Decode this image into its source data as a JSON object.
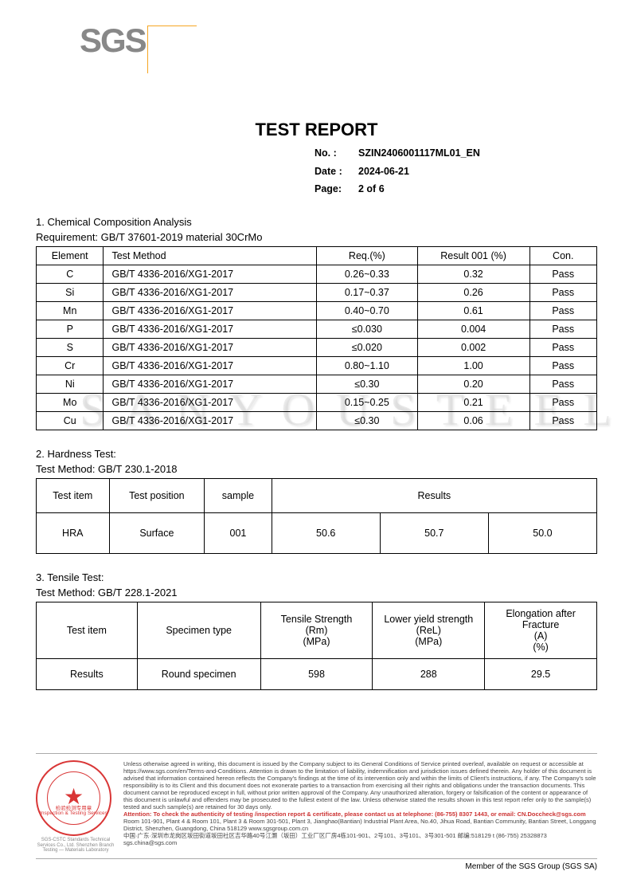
{
  "logo": {
    "text": "SGS"
  },
  "title": "TEST REPORT",
  "meta": {
    "no_label": "No.   :",
    "no": "SZIN2406001117ML01_EN",
    "date_label": "Date :",
    "date": "2024-06-21",
    "page_label": "Page:",
    "page": "2 of 6"
  },
  "watermark": "S A N Y O U  S T E E L",
  "section1": {
    "heading": "1. Chemical Composition Analysis",
    "requirement": "Requirement: GB/T 37601-2019 material 30CrMo",
    "columns": [
      "Element",
      "Test Method",
      "Req.(%)",
      "Result 001 (%)",
      "Con."
    ],
    "rows": [
      [
        "C",
        "GB/T 4336-2016/XG1-2017",
        "0.26~0.33",
        "0.32",
        "Pass"
      ],
      [
        "Si",
        "GB/T 4336-2016/XG1-2017",
        "0.17~0.37",
        "0.26",
        "Pass"
      ],
      [
        "Mn",
        "GB/T 4336-2016/XG1-2017",
        "0.40~0.70",
        "0.61",
        "Pass"
      ],
      [
        "P",
        "GB/T 4336-2016/XG1-2017",
        "≤0.030",
        "0.004",
        "Pass"
      ],
      [
        "S",
        "GB/T 4336-2016/XG1-2017",
        "≤0.020",
        "0.002",
        "Pass"
      ],
      [
        "Cr",
        "GB/T 4336-2016/XG1-2017",
        "0.80~1.10",
        "1.00",
        "Pass"
      ],
      [
        "Ni",
        "GB/T 4336-2016/XG1-2017",
        "≤0.30",
        "0.20",
        "Pass"
      ],
      [
        "Mo",
        "GB/T 4336-2016/XG1-2017",
        "0.15~0.25",
        "0.21",
        "Pass"
      ],
      [
        "Cu",
        "GB/T 4336-2016/XG1-2017",
        "≤0.30",
        "0.06",
        "Pass"
      ]
    ],
    "col_widths": [
      "12%",
      "38%",
      "18%",
      "20%",
      "12%"
    ]
  },
  "section2": {
    "heading": "2. Hardness Test:",
    "method": "Test Method: GB/T 230.1-2018",
    "columns": [
      "Test item",
      "Test position",
      "sample",
      "Results"
    ],
    "row": [
      "HRA",
      "Surface",
      "001",
      "50.6",
      "50.7",
      "50.0"
    ],
    "col_widths": [
      "13%",
      "17%",
      "12%",
      "19.33%",
      "19.33%",
      "19.33%"
    ]
  },
  "section3": {
    "heading": "3. Tensile Test:",
    "method": "Test Method: GB/T 228.1-2021",
    "header_top": [
      "Test item",
      "Specimen type",
      "Tensile Strength",
      "Lower yield strength",
      "Elongation after Fracture"
    ],
    "header_sym": [
      "(Rm)",
      "(ReL)",
      "(A)"
    ],
    "header_unit": [
      "(MPa)",
      "(MPa)",
      "(%)"
    ],
    "row": [
      "Results",
      "Round specimen",
      "598",
      "288",
      "29.5"
    ],
    "col_widths": [
      "18%",
      "22%",
      "20%",
      "20%",
      "20%"
    ]
  },
  "footer": {
    "stamp_text1": "检验检测专用章",
    "stamp_text2": "Inspection & Testing Services",
    "stamp_below": "SGS-CSTC Standards Technical Services Co., Ltd.\nShenzhen Branch Testing — Materials Laboratory",
    "fineprint": "Unless otherwise agreed in writing, this document is issued by the Company subject to its General Conditions of Service printed overleaf, available on request or accessible at https://www.sgs.com/en/Terms-and-Conditions. Attention is drawn to the limitation of liability, indemnification and jurisdiction issues defined therein. Any holder of this document is advised that information contained hereon reflects the Company's findings at the time of its intervention only and within the limits of Client's instructions, if any. The Company's sole responsibility is to its Client and this document does not exonerate parties to a transaction from exercising all their rights and obligations under the transaction documents. This document cannot be reproduced except in full, without prior written approval of the Company. Any unauthorized alteration, forgery or falsification of the content or appearance of this document is unlawful and offenders may be prosecuted to the fullest extent of the law. Unless otherwise stated the results shown in this test report refer only to the sample(s) tested and such sample(s) are retained for 30 days only.",
    "attn": "Attention: To check the authenticity of testing /inspection report & certificate, please contact us at telephone: (86-755) 8307 1443, or email: CN.Doccheck@sgs.com",
    "addr_en": "Room 101-901, Plant 4 & Room 101, Plant 3 & Room 301-501, Plant 3, Jianghao(Bantian) Industrial Plant Area, No.40, Jihua Road, Bantian Community, Bantian Street, Longgang District, Shenzhen, Guangdong, China 518129  www.sgsgroup.com.cn",
    "addr_cn": "中国·广东·深圳市龙岗区坂田街道坂田社区吉华路40号江灏（坂田）工业厂区厂房4栋101-901、2号101、3号101、3号301-501 邮编:518129    t (86-755) 25328873  sgs.china@sgs.com",
    "member": "Member of the SGS Group (SGS SA)"
  }
}
